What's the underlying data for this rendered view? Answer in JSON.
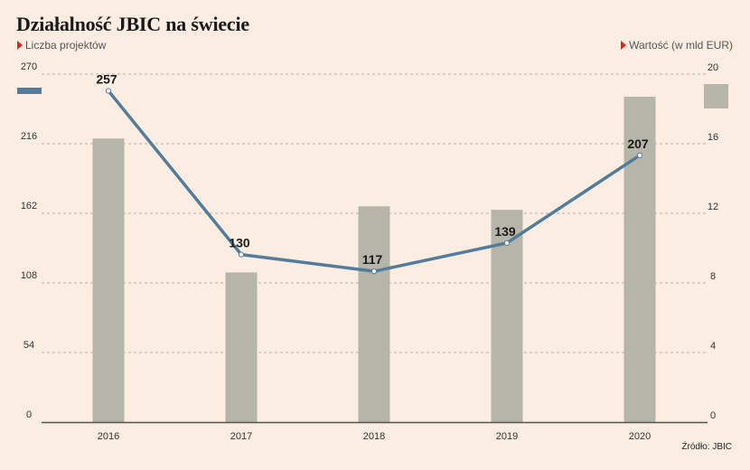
{
  "chart_data": {
    "type": "bar+line",
    "title": "Działalność JBIC na świecie",
    "categories": [
      "2016",
      "2017",
      "2018",
      "2019",
      "2020"
    ],
    "series": [
      {
        "name": "Liczba projektów",
        "chart": "line",
        "axis": "left",
        "values": [
          257,
          130,
          117,
          139,
          207
        ],
        "color": "#537c9c"
      },
      {
        "name": "Wartość (w mld EUR)",
        "chart": "bar",
        "axis": "right",
        "values": [
          16.3,
          8.6,
          12.4,
          12.2,
          18.7
        ],
        "color": "#b5b5aa"
      }
    ],
    "y_left": {
      "range": [
        0,
        270
      ],
      "ticks": [
        "0",
        "54",
        "108",
        "162",
        "216",
        "270"
      ]
    },
    "y_right": {
      "range": [
        0,
        20
      ],
      "ticks": [
        "0",
        "4",
        "8",
        "12",
        "16",
        "20"
      ]
    },
    "grid": true,
    "source": "Źródło: JBIC"
  },
  "colors": {
    "background": "#fbede1",
    "line": "#537c9c",
    "bar": "#b5b5aa",
    "marker": "#e2231a"
  }
}
